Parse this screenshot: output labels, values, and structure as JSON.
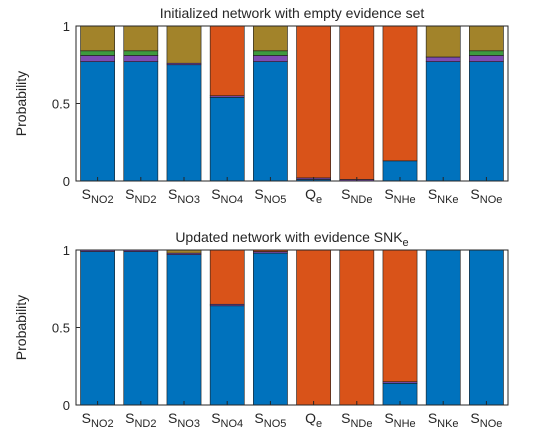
{
  "colors": {
    "blue": "#0072BD",
    "orange": "#D95319",
    "olive": "#A2832A",
    "green": "#3E9A3E",
    "purple": "#7E4CB2",
    "axis": "#262626"
  },
  "chart_data": [
    {
      "type": "bar",
      "stacked": true,
      "title": "Initialized network with empty evidence set",
      "ylabel": "Probability",
      "ylim": [
        0,
        1
      ],
      "yticks": [
        "0",
        "0.5",
        "1"
      ],
      "yticks_values": [
        0,
        0.5,
        1
      ],
      "grid": false,
      "categories": [
        {
          "base": "S",
          "sub": "NO2"
        },
        {
          "base": "S",
          "sub": "ND2"
        },
        {
          "base": "S",
          "sub": "NO3"
        },
        {
          "base": "S",
          "sub": "NO4"
        },
        {
          "base": "S",
          "sub": "NO5"
        },
        {
          "base": "Q",
          "sub": "e"
        },
        {
          "base": "S",
          "sub": "NDe"
        },
        {
          "base": "S",
          "sub": "NHe"
        },
        {
          "base": "S",
          "sub": "NKe"
        },
        {
          "base": "S",
          "sub": "NOe"
        }
      ],
      "series": [
        {
          "color": "#0072BD",
          "values": [
            0.77,
            0.77,
            0.75,
            0.54,
            0.77,
            0.01,
            0.0,
            0.13,
            0.77,
            0.77
          ]
        },
        {
          "color": "#7E4CB2",
          "values": [
            0.04,
            0.04,
            0.01,
            0.01,
            0.04,
            0.01,
            0.01,
            0.0,
            0.03,
            0.04
          ]
        },
        {
          "color": "#3E9A3E",
          "values": [
            0.03,
            0.03,
            0.0,
            0.0,
            0.03,
            0.0,
            0.0,
            0.0,
            0.0,
            0.03
          ]
        },
        {
          "color": "#D95319",
          "values": [
            0.0,
            0.0,
            0.0,
            0.45,
            0.0,
            0.98,
            0.99,
            0.87,
            0.0,
            0.0
          ]
        },
        {
          "color": "#A2832A",
          "values": [
            0.16,
            0.16,
            0.24,
            0.0,
            0.16,
            0.0,
            0.0,
            0.0,
            0.2,
            0.16
          ]
        }
      ]
    },
    {
      "type": "bar",
      "stacked": true,
      "title": "Updated network with evidence SNK",
      "title_sub": "e",
      "ylabel": "Probability",
      "ylim": [
        0,
        1
      ],
      "yticks": [
        "0",
        "0.5",
        "1"
      ],
      "yticks_values": [
        0,
        0.5,
        1
      ],
      "grid": false,
      "categories": [
        {
          "base": "S",
          "sub": "NO2"
        },
        {
          "base": "S",
          "sub": "ND2"
        },
        {
          "base": "S",
          "sub": "NO3"
        },
        {
          "base": "S",
          "sub": "NO4"
        },
        {
          "base": "S",
          "sub": "NO5"
        },
        {
          "base": "Q",
          "sub": "e"
        },
        {
          "base": "S",
          "sub": "NDe"
        },
        {
          "base": "S",
          "sub": "NHe"
        },
        {
          "base": "S",
          "sub": "NKe"
        },
        {
          "base": "S",
          "sub": "NOe"
        }
      ],
      "series": [
        {
          "color": "#0072BD",
          "values": [
            0.99,
            0.99,
            0.97,
            0.64,
            0.98,
            0.0,
            0.0,
            0.14,
            1.0,
            1.0
          ]
        },
        {
          "color": "#7E4CB2",
          "values": [
            0.01,
            0.01,
            0.01,
            0.01,
            0.01,
            0.0,
            0.0,
            0.01,
            0.0,
            0.0
          ]
        },
        {
          "color": "#3E9A3E",
          "values": [
            0.0,
            0.0,
            0.0,
            0.0,
            0.0,
            0.0,
            0.0,
            0.0,
            0.0,
            0.0
          ]
        },
        {
          "color": "#D95319",
          "values": [
            0.0,
            0.0,
            0.0,
            0.35,
            0.01,
            1.0,
            1.0,
            0.85,
            0.0,
            0.0
          ]
        },
        {
          "color": "#A2832A",
          "values": [
            0.0,
            0.0,
            0.02,
            0.0,
            0.0,
            0.0,
            0.0,
            0.0,
            0.0,
            0.0
          ]
        }
      ]
    }
  ]
}
